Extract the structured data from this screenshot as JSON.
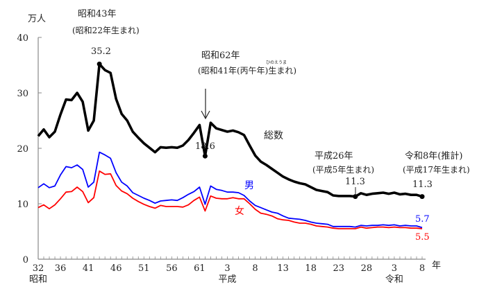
{
  "chart_data": {
    "type": "line",
    "ylabel": "万人",
    "xlabel": "年",
    "ylim": [
      0,
      40
    ],
    "yticks": [
      "0",
      "10",
      "20",
      "30",
      "40"
    ],
    "xlim": [
      1957,
      2026
    ],
    "xtick_years": [
      1957,
      1961,
      1966,
      1971,
      1976,
      1981,
      1986,
      1991,
      1996,
      2001,
      2006,
      2011,
      2016,
      2021,
      2026
    ],
    "xtick_labels": [
      "32",
      "36",
      "41",
      "46",
      "51",
      "56",
      "61",
      "3",
      "8",
      "13",
      "18",
      "23",
      "28",
      "3",
      "8"
    ],
    "eras": [
      {
        "label": "昭和",
        "year": 1957
      },
      {
        "label": "平成",
        "year": 1991
      },
      {
        "label": "令和",
        "year": 2021
      }
    ],
    "grid": false,
    "x_start_year": 1957,
    "series": [
      {
        "name": "総数",
        "color": "#000000",
        "values": [
          22.2,
          23.4,
          22.0,
          23.0,
          26.1,
          28.8,
          28.7,
          30.0,
          28.4,
          23.2,
          25.0,
          35.2,
          34.1,
          33.6,
          28.9,
          26.2,
          25.0,
          23.0,
          21.9,
          20.9,
          20.1,
          19.3,
          20.2,
          20.1,
          20.2,
          20.1,
          20.5,
          21.5,
          22.8,
          24.2,
          18.6,
          24.6,
          23.6,
          23.3,
          23.0,
          23.2,
          22.9,
          22.4,
          20.5,
          18.7,
          17.6,
          17.0,
          16.3,
          15.6,
          14.9,
          14.4,
          14.0,
          13.7,
          13.5,
          13.0,
          12.5,
          12.3,
          12.1,
          11.5,
          11.4,
          11.4,
          11.4,
          11.3,
          11.9,
          11.6,
          11.8,
          11.9,
          12.0,
          11.8,
          12.0,
          11.7,
          11.8,
          11.6,
          11.6,
          11.3
        ]
      },
      {
        "name": "男",
        "color": "#0000ff",
        "values": [
          12.9,
          13.6,
          12.9,
          13.2,
          15.2,
          16.7,
          16.5,
          17.0,
          16.2,
          13.0,
          13.9,
          19.3,
          18.8,
          18.2,
          15.6,
          13.9,
          13.2,
          12.0,
          11.5,
          11.0,
          10.6,
          10.1,
          10.5,
          10.6,
          10.7,
          10.6,
          11.1,
          11.7,
          12.2,
          13.0,
          9.9,
          13.2,
          12.6,
          12.4,
          12.1,
          12.1,
          12.0,
          11.5,
          10.5,
          9.7,
          9.3,
          8.9,
          8.5,
          8.3,
          7.8,
          7.4,
          7.3,
          7.2,
          7.0,
          6.7,
          6.5,
          6.4,
          6.3,
          5.9,
          5.9,
          5.9,
          5.9,
          5.8,
          6.1,
          6.0,
          6.1,
          6.1,
          6.2,
          6.1,
          6.2,
          6.0,
          6.1,
          6.0,
          6.0,
          5.7
        ]
      },
      {
        "name": "女",
        "color": "#ff0000",
        "values": [
          9.3,
          9.8,
          9.1,
          9.8,
          10.9,
          12.1,
          12.2,
          13.0,
          12.2,
          10.2,
          11.1,
          15.9,
          15.3,
          15.4,
          13.3,
          12.3,
          11.8,
          11.0,
          10.4,
          9.9,
          9.5,
          9.2,
          9.7,
          9.5,
          9.5,
          9.5,
          9.4,
          9.8,
          10.6,
          11.2,
          8.7,
          11.4,
          11.0,
          10.9,
          10.9,
          11.1,
          10.9,
          10.9,
          10.0,
          9.0,
          8.3,
          8.1,
          7.8,
          7.3,
          7.1,
          7.0,
          6.7,
          6.5,
          6.5,
          6.3,
          6.0,
          5.9,
          5.8,
          5.6,
          5.5,
          5.5,
          5.5,
          5.5,
          5.8,
          5.6,
          5.7,
          5.8,
          5.8,
          5.7,
          5.8,
          5.7,
          5.7,
          5.6,
          5.6,
          5.5
        ]
      }
    ],
    "annotations": {
      "peak": {
        "title": "昭和43年",
        "sub": "(昭和22年生まれ)",
        "value": "35.2",
        "year": 1968
      },
      "hinoeuma": {
        "title": "昭和62年",
        "sub_a": "(昭和41年(",
        "sub_b": "丙午年",
        "sub_c": ")生まれ)",
        "ruby": "ひのえうま",
        "value": "18.6",
        "year": 1987
      },
      "h26": {
        "title": "平成26年",
        "sub": "(平成5年生まれ)",
        "value": "11.3",
        "year": 2014
      },
      "r8": {
        "title": "令和8年(推計)",
        "sub": "(平成17年生まれ)",
        "value": "11.3",
        "year": 2026
      },
      "male_end": "5.7",
      "female_end": "5.5"
    }
  }
}
